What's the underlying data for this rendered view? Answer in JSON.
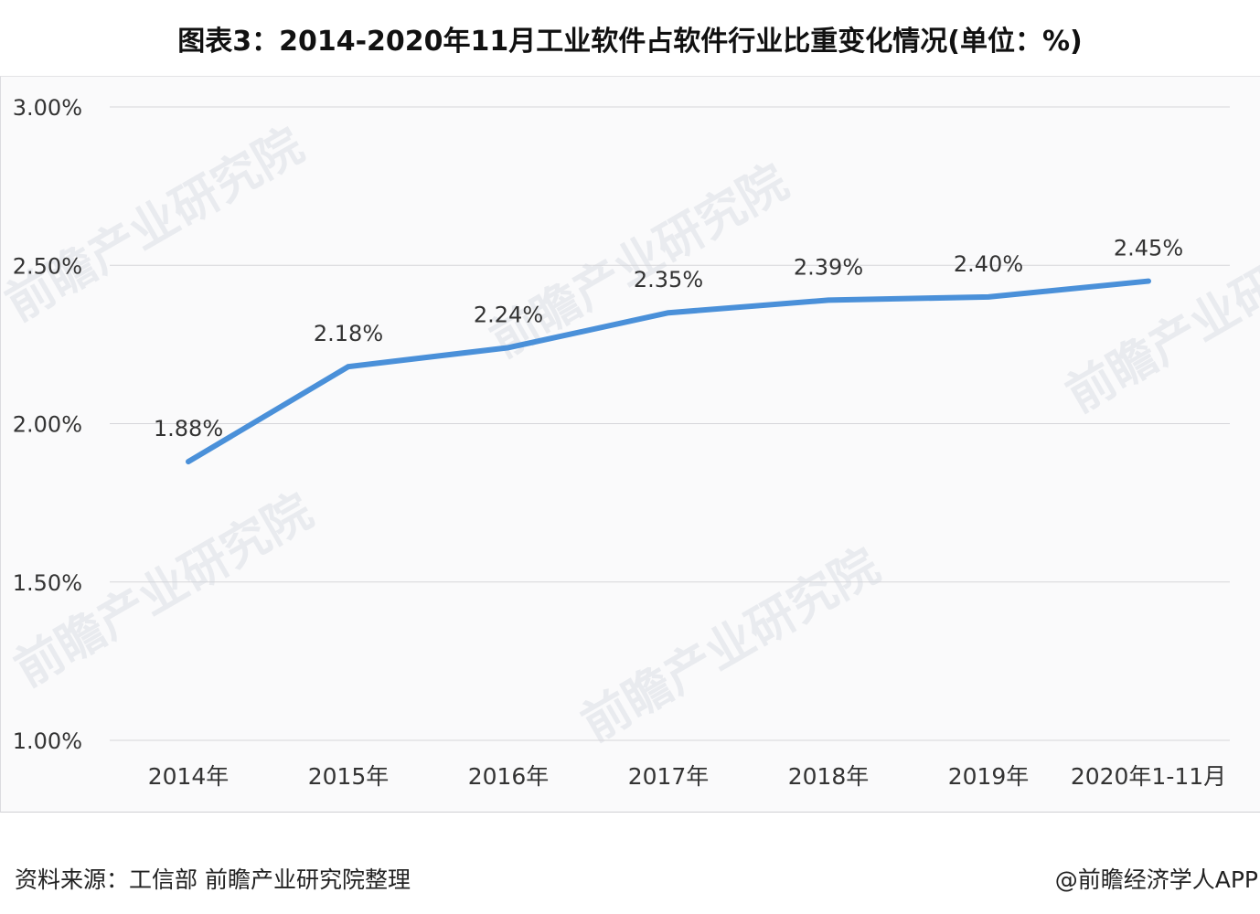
{
  "title": "图表3：2014-2020年11月工业软件占软件行业比重变化情况(单位：%)",
  "source": "资料来源：工信部 前瞻产业研究院整理",
  "credit": "@前瞻经济学人APP",
  "watermark": "前瞻产业研究院",
  "chart_data": {
    "type": "line",
    "categories": [
      "2014年",
      "2015年",
      "2016年",
      "2017年",
      "2018年",
      "2019年",
      "2020年1-11月"
    ],
    "series": [
      {
        "values": [
          1.88,
          2.18,
          2.24,
          2.35,
          2.39,
          2.4,
          2.45
        ],
        "labels": [
          "1.88%",
          "2.18%",
          "2.24%",
          "2.35%",
          "2.39%",
          "2.40%",
          "2.45%"
        ],
        "color": "#4a90d9"
      }
    ],
    "ylim": [
      1.0,
      3.0
    ],
    "yticks": [
      1.0,
      1.5,
      2.0,
      2.5,
      3.0
    ],
    "ytick_labels": [
      "1.00%",
      "1.50%",
      "2.00%",
      "2.50%",
      "3.00%"
    ],
    "grid": true,
    "gridline_color": "#d6d6da",
    "title": "",
    "xlabel": "",
    "ylabel": ""
  }
}
